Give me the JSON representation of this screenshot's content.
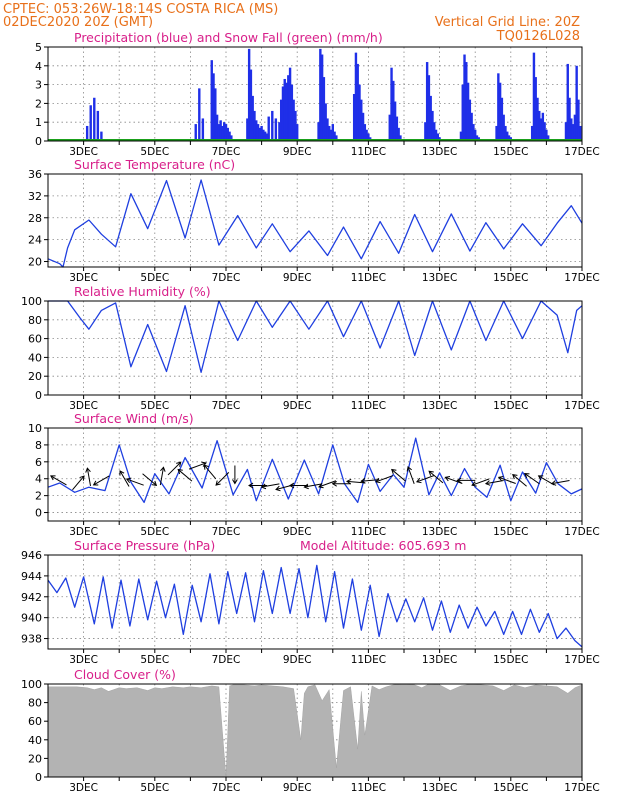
{
  "header": {
    "line1": "CPTEC:   053:26W-18:14S   COSTA RICA (MS)",
    "line2": "02DEC2020 20Z (GMT)",
    "grid_note": "Vertical Grid Line: 20Z",
    "run_code": "TQ0126L028"
  },
  "colors": {
    "header": "#e8701a",
    "title": "#d81f8a",
    "precip": "#1f2fe8",
    "snow": "#1aa01a",
    "line": "#1f3fe0",
    "cloud": "#b3b3b3",
    "arrow": "#000000"
  },
  "chart_data": [
    {
      "type": "bar",
      "name": "precipitation",
      "title": "Precipitation (blue) and Snow Fall (green) (mm/h)",
      "xlabel": "",
      "ylabel": "",
      "ylim": [
        0,
        5
      ],
      "yticks": [
        0,
        1,
        2,
        3,
        4,
        5
      ],
      "xticks": [
        "3DEC",
        "5DEC",
        "7DEC",
        "9DEC",
        "11DEC",
        "13DEC",
        "15DEC",
        "17DEC"
      ],
      "grid": true,
      "x": [
        3.1,
        3.2,
        3.3,
        3.4,
        3.5,
        6.15,
        6.25,
        6.35,
        6.6,
        6.65,
        6.7,
        6.75,
        6.8,
        6.85,
        6.9,
        6.95,
        7.0,
        7.05,
        7.1,
        7.15,
        7.6,
        7.65,
        7.7,
        7.75,
        7.8,
        7.85,
        7.9,
        7.95,
        8.0,
        8.05,
        8.1,
        8.15,
        8.2,
        8.3,
        8.4,
        8.5,
        8.55,
        8.6,
        8.65,
        8.7,
        8.75,
        8.8,
        8.85,
        8.9,
        8.95,
        9.0,
        9.6,
        9.65,
        9.7,
        9.75,
        9.8,
        9.85,
        9.9,
        9.95,
        10.0,
        10.05,
        10.1,
        10.6,
        10.65,
        10.7,
        10.75,
        10.8,
        10.85,
        10.9,
        10.95,
        11.0,
        11.05,
        11.6,
        11.65,
        11.7,
        11.75,
        11.8,
        11.85,
        11.9,
        12.6,
        12.65,
        12.7,
        12.75,
        12.8,
        12.85,
        12.9,
        12.95,
        13.0,
        13.6,
        13.65,
        13.7,
        13.75,
        13.8,
        13.85,
        13.9,
        13.95,
        14.0,
        14.05,
        14.1,
        14.6,
        14.65,
        14.7,
        14.75,
        14.8,
        14.85,
        14.9,
        14.95,
        15.0,
        15.05,
        15.6,
        15.65,
        15.7,
        15.75,
        15.8,
        15.85,
        15.9,
        15.95,
        16.0,
        16.05,
        16.55,
        16.6,
        16.65,
        16.7,
        16.75,
        16.8,
        16.85,
        16.9,
        16.95
      ],
      "values": [
        0.8,
        1.9,
        2.3,
        1.6,
        0.5,
        0.9,
        2.8,
        1.2,
        4.3,
        3.6,
        2.8,
        1.4,
        0.9,
        1.1,
        0.8,
        1.0,
        0.9,
        0.7,
        0.5,
        0.3,
        1.2,
        4.9,
        3.8,
        2.4,
        1.6,
        1.1,
        0.9,
        0.7,
        0.8,
        0.6,
        0.5,
        0.4,
        1.3,
        1.6,
        1.2,
        1.0,
        2.2,
        2.9,
        3.3,
        3.1,
        3.5,
        3.9,
        3.0,
        2.2,
        1.6,
        0.9,
        1.0,
        4.9,
        4.6,
        3.4,
        2.0,
        1.2,
        0.8,
        0.6,
        0.9,
        0.5,
        0.3,
        2.5,
        4.7,
        4.1,
        3.0,
        2.2,
        1.5,
        0.9,
        0.6,
        0.4,
        0.2,
        1.4,
        3.9,
        3.2,
        2.1,
        1.3,
        0.7,
        0.3,
        1.0,
        4.2,
        3.5,
        2.4,
        1.6,
        1.0,
        0.6,
        0.4,
        0.2,
        0.5,
        3.0,
        4.6,
        4.2,
        3.1,
        2.2,
        1.5,
        0.9,
        0.6,
        0.3,
        0.2,
        0.8,
        3.6,
        3.1,
        2.3,
        1.4,
        0.8,
        0.5,
        0.3,
        0.2,
        0.1,
        0.8,
        4.7,
        3.4,
        2.3,
        1.6,
        1.2,
        1.5,
        1.0,
        0.6,
        0.3,
        1.0,
        4.1,
        2.3,
        1.2,
        0.9,
        1.4,
        4.0,
        2.2,
        0.8
      ],
      "snow": 0
    },
    {
      "type": "line",
      "name": "temperature",
      "title": "Surface Temperature (nC)",
      "xlabel": "",
      "ylabel": "",
      "ylim": [
        19,
        36
      ],
      "yticks": [
        20,
        24,
        28,
        32,
        36
      ],
      "xticks": [
        "3DEC",
        "5DEC",
        "7DEC",
        "9DEC",
        "11DEC",
        "13DEC",
        "15DEC",
        "17DEC"
      ],
      "grid": true,
      "x": [
        2.0,
        2.33,
        2.42,
        2.55,
        2.75,
        3.15,
        3.5,
        3.9,
        4.33,
        4.8,
        5.33,
        5.85,
        6.3,
        6.8,
        7.33,
        7.85,
        8.3,
        8.8,
        9.33,
        9.85,
        10.3,
        10.8,
        11.33,
        11.85,
        12.3,
        12.8,
        13.33,
        13.85,
        14.3,
        14.8,
        15.33,
        15.85,
        16.3,
        16.7,
        17.0
      ],
      "values": [
        20.5,
        19.6,
        19.0,
        22.5,
        25.8,
        27.6,
        25.0,
        22.7,
        32.4,
        26.0,
        34.8,
        24.3,
        34.9,
        23.0,
        28.4,
        22.5,
        26.9,
        21.8,
        25.6,
        21.1,
        26.3,
        20.5,
        27.3,
        21.5,
        28.6,
        21.8,
        28.7,
        21.9,
        27.1,
        22.3,
        26.9,
        22.9,
        27.0,
        30.2,
        27.0
      ]
    },
    {
      "type": "line",
      "name": "humidity",
      "title": "Relative Humidity (%)",
      "xlabel": "",
      "ylabel": "",
      "ylim": [
        0,
        100
      ],
      "yticks": [
        0,
        20,
        40,
        60,
        80,
        100
      ],
      "xticks": [
        "3DEC",
        "5DEC",
        "7DEC",
        "9DEC",
        "11DEC",
        "13DEC",
        "15DEC",
        "17DEC"
      ],
      "grid": true,
      "x": [
        2.0,
        2.55,
        2.9,
        3.15,
        3.5,
        3.9,
        4.33,
        4.8,
        5.33,
        5.85,
        6.3,
        6.8,
        7.33,
        7.85,
        8.3,
        8.8,
        9.33,
        9.85,
        10.3,
        10.8,
        11.33,
        11.85,
        12.3,
        12.8,
        13.33,
        13.85,
        14.3,
        14.8,
        15.33,
        15.85,
        16.3,
        16.6,
        16.85,
        17.0
      ],
      "values": [
        100,
        100,
        82,
        70,
        90,
        98,
        30,
        75,
        25,
        95,
        24,
        100,
        58,
        100,
        72,
        100,
        70,
        100,
        62,
        100,
        50,
        100,
        42,
        100,
        48,
        100,
        58,
        100,
        60,
        100,
        85,
        45,
        90,
        95
      ]
    },
    {
      "type": "line",
      "name": "wind",
      "title": "Surface Wind (m/s)",
      "xlabel": "",
      "ylabel": "",
      "ylim": [
        -1,
        10
      ],
      "yticks": [
        0,
        2,
        4,
        6,
        8,
        10
      ],
      "xticks": [
        "3DEC",
        "5DEC",
        "7DEC",
        "9DEC",
        "11DEC",
        "13DEC",
        "15DEC",
        "17DEC"
      ],
      "grid": true,
      "x": [
        2.0,
        2.33,
        2.75,
        3.15,
        3.6,
        4.0,
        4.33,
        4.7,
        5.0,
        5.4,
        5.85,
        6.33,
        6.75,
        7.2,
        7.6,
        7.85,
        8.3,
        8.75,
        9.2,
        9.6,
        10.0,
        10.33,
        10.7,
        11.0,
        11.33,
        11.7,
        12.0,
        12.33,
        12.7,
        13.0,
        13.33,
        13.7,
        14.0,
        14.33,
        14.7,
        15.0,
        15.33,
        15.7,
        16.0,
        16.33,
        16.7,
        17.0
      ],
      "values": [
        3.0,
        3.5,
        2.4,
        3.0,
        2.6,
        8.0,
        3.6,
        1.2,
        4.6,
        2.2,
        6.5,
        2.9,
        8.5,
        2.1,
        5.1,
        1.4,
        6.3,
        1.6,
        6.2,
        2.2,
        8.0,
        3.4,
        1.2,
        5.7,
        2.5,
        4.5,
        3.0,
        8.8,
        2.1,
        4.7,
        2.0,
        5.2,
        3.0,
        1.8,
        5.6,
        1.4,
        4.8,
        2.3,
        5.9,
        3.4,
        2.2,
        2.8
      ],
      "arrows": [
        {
          "x": 2.3,
          "speed": 3.8,
          "dir": 150
        },
        {
          "x": 2.85,
          "speed": 3.5,
          "dir": 50
        },
        {
          "x": 3.15,
          "speed": 4.2,
          "dir": 100
        },
        {
          "x": 3.5,
          "speed": 3.8,
          "dir": 210
        },
        {
          "x": 4.15,
          "speed": 4.0,
          "dir": 120
        },
        {
          "x": 4.45,
          "speed": 3.6,
          "dir": 160
        },
        {
          "x": 4.85,
          "speed": 3.9,
          "dir": 320
        },
        {
          "x": 5.2,
          "speed": 4.3,
          "dir": 80
        },
        {
          "x": 5.55,
          "speed": 5.2,
          "dir": 45
        },
        {
          "x": 5.85,
          "speed": 4.4,
          "dir": 140
        },
        {
          "x": 6.2,
          "speed": 5.5,
          "dir": 20
        },
        {
          "x": 6.55,
          "speed": 4.8,
          "dir": 130
        },
        {
          "x": 6.9,
          "speed": 4.0,
          "dir": 225
        },
        {
          "x": 7.25,
          "speed": 4.5,
          "dir": 270
        },
        {
          "x": 7.9,
          "speed": 3.2,
          "dir": 180
        },
        {
          "x": 8.25,
          "speed": 3.2,
          "dir": 190
        },
        {
          "x": 8.65,
          "speed": 3.0,
          "dir": 195
        },
        {
          "x": 9.05,
          "speed": 3.2,
          "dir": 180
        },
        {
          "x": 9.45,
          "speed": 3.2,
          "dir": 190
        },
        {
          "x": 9.85,
          "speed": 3.4,
          "dir": 200
        },
        {
          "x": 10.25,
          "speed": 3.4,
          "dir": 180
        },
        {
          "x": 10.65,
          "speed": 3.6,
          "dir": 175
        },
        {
          "x": 11.05,
          "speed": 3.8,
          "dir": 185
        },
        {
          "x": 11.45,
          "speed": 4.0,
          "dir": 200
        },
        {
          "x": 11.85,
          "speed": 4.4,
          "dir": 140
        },
        {
          "x": 12.2,
          "speed": 4.4,
          "dir": 110
        },
        {
          "x": 12.6,
          "speed": 4.0,
          "dir": 200
        },
        {
          "x": 12.9,
          "speed": 4.2,
          "dir": 140
        },
        {
          "x": 13.4,
          "speed": 3.8,
          "dir": 160
        },
        {
          "x": 13.75,
          "speed": 3.8,
          "dir": 180
        },
        {
          "x": 14.15,
          "speed": 3.6,
          "dir": 200
        },
        {
          "x": 14.55,
          "speed": 3.6,
          "dir": 190
        },
        {
          "x": 14.9,
          "speed": 3.8,
          "dir": 160
        },
        {
          "x": 15.25,
          "speed": 3.8,
          "dir": 140
        },
        {
          "x": 15.6,
          "speed": 4.0,
          "dir": 145
        },
        {
          "x": 16.0,
          "speed": 3.8,
          "dir": 150
        },
        {
          "x": 16.4,
          "speed": 3.6,
          "dir": 190
        }
      ]
    },
    {
      "type": "line",
      "name": "pressure",
      "title": "Surface Pressure (hPa)",
      "altitude_note": "Model Altitude: 605.693 m",
      "xlabel": "",
      "ylabel": "",
      "ylim": [
        937,
        946
      ],
      "yticks": [
        938,
        940,
        942,
        944,
        946
      ],
      "xticks": [
        "3DEC",
        "5DEC",
        "7DEC",
        "9DEC",
        "11DEC",
        "13DEC",
        "15DEC",
        "17DEC"
      ],
      "grid": true,
      "x": [
        2.0,
        2.25,
        2.5,
        2.75,
        3.0,
        3.3,
        3.55,
        3.8,
        4.05,
        4.3,
        4.55,
        4.8,
        5.05,
        5.3,
        5.55,
        5.8,
        6.05,
        6.3,
        6.55,
        6.8,
        7.05,
        7.3,
        7.55,
        7.8,
        8.05,
        8.3,
        8.55,
        8.8,
        9.05,
        9.3,
        9.55,
        9.8,
        10.05,
        10.3,
        10.55,
        10.8,
        11.05,
        11.3,
        11.55,
        11.8,
        12.05,
        12.3,
        12.55,
        12.8,
        13.05,
        13.3,
        13.55,
        13.8,
        14.05,
        14.3,
        14.55,
        14.8,
        15.05,
        15.3,
        15.55,
        15.8,
        16.05,
        16.3,
        16.55,
        16.8,
        17.0
      ],
      "values": [
        943.6,
        942.4,
        943.8,
        941.0,
        943.9,
        939.4,
        943.9,
        939.0,
        943.6,
        939.2,
        943.7,
        939.8,
        943.5,
        940.0,
        943.2,
        938.4,
        943.1,
        939.6,
        944.2,
        939.4,
        944.4,
        940.4,
        944.3,
        939.6,
        944.5,
        940.4,
        944.8,
        940.4,
        944.7,
        940.0,
        945.0,
        939.6,
        944.4,
        939.0,
        943.7,
        938.8,
        943.1,
        938.2,
        942.3,
        939.6,
        941.8,
        939.6,
        941.9,
        938.8,
        941.6,
        938.6,
        941.2,
        939.0,
        941.0,
        939.2,
        940.6,
        938.4,
        940.6,
        938.4,
        940.8,
        938.6,
        940.4,
        938.0,
        939.0,
        937.8,
        937.2
      ]
    },
    {
      "type": "area",
      "name": "cloud",
      "title": "Cloud Cover (%)",
      "xlabel": "",
      "ylabel": "",
      "ylim": [
        0,
        100
      ],
      "yticks": [
        0,
        20,
        40,
        60,
        80,
        100
      ],
      "xticks": [
        "3DEC",
        "5DEC",
        "7DEC",
        "9DEC",
        "11DEC",
        "13DEC",
        "15DEC",
        "17DEC"
      ],
      "grid": true,
      "x": [
        2.0,
        2.4,
        2.8,
        3.1,
        3.3,
        3.5,
        3.7,
        4.0,
        4.2,
        4.5,
        4.8,
        5.0,
        5.2,
        5.5,
        5.8,
        6.0,
        6.3,
        6.6,
        6.8,
        7.0,
        7.1,
        7.2,
        7.5,
        7.8,
        8.0,
        8.3,
        8.6,
        8.9,
        9.1,
        9.2,
        9.3,
        9.5,
        9.7,
        9.9,
        10.1,
        10.3,
        10.5,
        10.7,
        10.8,
        10.9,
        11.1,
        11.3,
        11.5,
        11.7,
        12.0,
        12.3,
        12.5,
        12.7,
        13.0,
        13.3,
        13.6,
        13.9,
        14.2,
        14.5,
        14.8,
        15.1,
        15.4,
        15.7,
        16.0,
        16.3,
        16.6,
        16.8,
        17.0
      ],
      "values": [
        97,
        97,
        97,
        96,
        94,
        96,
        92,
        96,
        95,
        96,
        93,
        96,
        95,
        97,
        96,
        97,
        96,
        98,
        97,
        0,
        98,
        99,
        99,
        98,
        99,
        98,
        97,
        95,
        40,
        90,
        97,
        99,
        82,
        94,
        10,
        93,
        97,
        30,
        92,
        45,
        98,
        94,
        97,
        99,
        100,
        99,
        96,
        100,
        99,
        93,
        98,
        100,
        99,
        98,
        93,
        99,
        96,
        99,
        98,
        97,
        90,
        96,
        99
      ]
    }
  ]
}
